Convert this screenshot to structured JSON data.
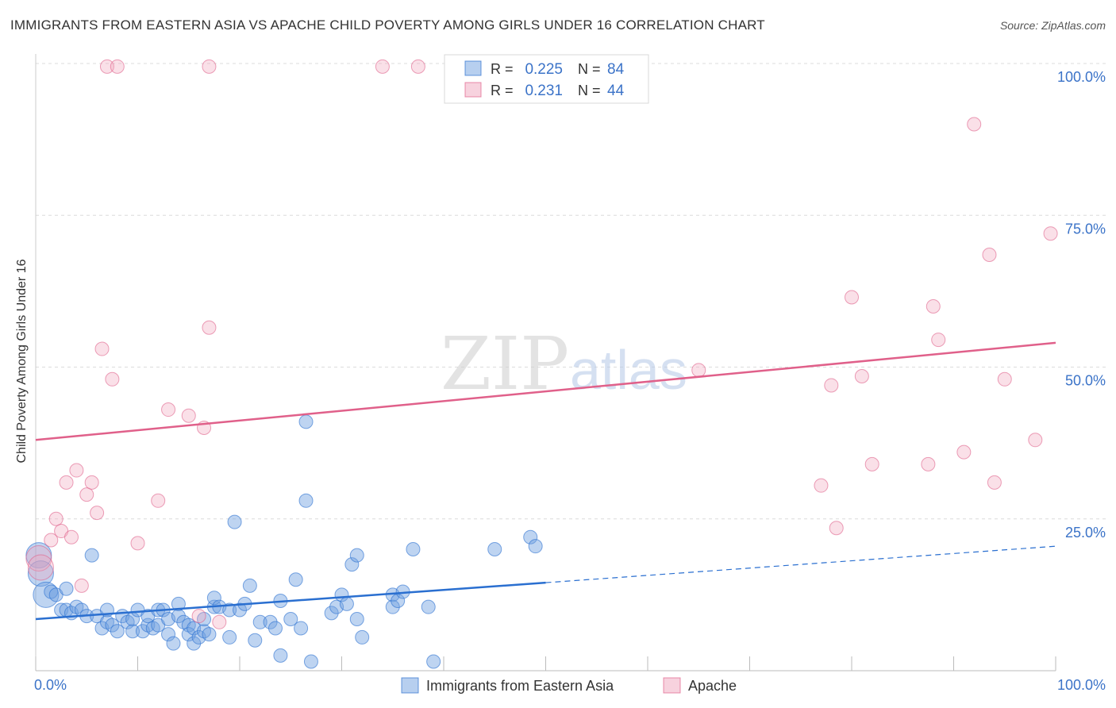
{
  "header": {
    "title": "IMMIGRANTS FROM EASTERN ASIA VS APACHE CHILD POVERTY AMONG GIRLS UNDER 16 CORRELATION CHART",
    "source": "Source: ZipAtlas.com"
  },
  "watermark": {
    "zip": "ZIP",
    "atlas": "atlas"
  },
  "stats": [
    {
      "r_label": "R =",
      "r_value": "0.225",
      "n_label": "N =",
      "n_value": "84"
    },
    {
      "r_label": "R =",
      "r_value": "0.231",
      "n_label": "N =",
      "n_value": "44"
    }
  ],
  "chart_data": {
    "type": "scatter",
    "title": "IMMIGRANTS FROM EASTERN ASIA VS APACHE CHILD POVERTY AMONG GIRLS UNDER 16 CORRELATION CHART",
    "xlabel": "",
    "ylabel": "Child Poverty Among Girls Under 16",
    "xlim": [
      0,
      100
    ],
    "ylim": [
      0,
      100
    ],
    "x_tick_labels": [
      "0.0%",
      "100.0%"
    ],
    "y_tick_labels": [
      "100.0%",
      "75.0%",
      "50.0%",
      "25.0%"
    ],
    "y_tick_values": [
      100,
      75,
      50,
      25
    ],
    "grid": "horizontal dashed",
    "legend_position": "bottom",
    "colors": {
      "eastern_asia": "#6f9fe0",
      "eastern_asia_line": "#2a6fd0",
      "apache": "#f0a5bd",
      "apache_line": "#e0608a",
      "value_text": "#3b73c8"
    },
    "series": [
      {
        "name": "Immigrants from Eastern Asia",
        "trend": {
          "x0": 0,
          "y0": 8.5,
          "x1": 50,
          "y1": 14.5,
          "dash_to_x": 100,
          "dash_to_y": 20.5
        },
        "points": [
          {
            "x": 0.3,
            "y": 19,
            "big": true
          },
          {
            "x": 0.5,
            "y": 16,
            "big": true
          },
          {
            "x": 1,
            "y": 12.5,
            "big": true
          },
          {
            "x": 1.5,
            "y": 13
          },
          {
            "x": 2,
            "y": 12.5
          },
          {
            "x": 2.5,
            "y": 10
          },
          {
            "x": 3,
            "y": 13.5
          },
          {
            "x": 3,
            "y": 10
          },
          {
            "x": 3.5,
            "y": 9.5
          },
          {
            "x": 4,
            "y": 10.5
          },
          {
            "x": 4.5,
            "y": 10
          },
          {
            "x": 5,
            "y": 9
          },
          {
            "x": 5.5,
            "y": 19
          },
          {
            "x": 6,
            "y": 9
          },
          {
            "x": 6.5,
            "y": 7
          },
          {
            "x": 7,
            "y": 8
          },
          {
            "x": 7,
            "y": 10
          },
          {
            "x": 7.5,
            "y": 7.5
          },
          {
            "x": 8,
            "y": 6.5
          },
          {
            "x": 8.5,
            "y": 9
          },
          {
            "x": 9,
            "y": 8
          },
          {
            "x": 9.5,
            "y": 6.5
          },
          {
            "x": 9.5,
            "y": 8.5
          },
          {
            "x": 10,
            "y": 10
          },
          {
            "x": 10.5,
            "y": 6.5
          },
          {
            "x": 11,
            "y": 7.5
          },
          {
            "x": 11,
            "y": 9
          },
          {
            "x": 11.5,
            "y": 7
          },
          {
            "x": 12,
            "y": 10
          },
          {
            "x": 12,
            "y": 7.5
          },
          {
            "x": 12.5,
            "y": 10
          },
          {
            "x": 13,
            "y": 8.5
          },
          {
            "x": 13,
            "y": 6
          },
          {
            "x": 13.5,
            "y": 4.5
          },
          {
            "x": 14,
            "y": 9
          },
          {
            "x": 14,
            "y": 11
          },
          {
            "x": 14.5,
            "y": 8
          },
          {
            "x": 15,
            "y": 7.5
          },
          {
            "x": 15,
            "y": 6
          },
          {
            "x": 15.5,
            "y": 4.5
          },
          {
            "x": 15.5,
            "y": 7
          },
          {
            "x": 16,
            "y": 5.5
          },
          {
            "x": 16.5,
            "y": 6.5
          },
          {
            "x": 16.5,
            "y": 8.5
          },
          {
            "x": 17,
            "y": 6
          },
          {
            "x": 17.5,
            "y": 10.5
          },
          {
            "x": 17.5,
            "y": 12
          },
          {
            "x": 18,
            "y": 10.5
          },
          {
            "x": 19,
            "y": 5.5
          },
          {
            "x": 19,
            "y": 10
          },
          {
            "x": 19.5,
            "y": 24.5
          },
          {
            "x": 20,
            "y": 10
          },
          {
            "x": 20.5,
            "y": 11
          },
          {
            "x": 21,
            "y": 14
          },
          {
            "x": 21.5,
            "y": 5
          },
          {
            "x": 22,
            "y": 8
          },
          {
            "x": 23,
            "y": 8
          },
          {
            "x": 23.5,
            "y": 7
          },
          {
            "x": 24,
            "y": 11.5
          },
          {
            "x": 24,
            "y": 2.5
          },
          {
            "x": 25,
            "y": 8.5
          },
          {
            "x": 25.5,
            "y": 15
          },
          {
            "x": 26,
            "y": 7
          },
          {
            "x": 26.5,
            "y": 41
          },
          {
            "x": 26.5,
            "y": 28
          },
          {
            "x": 27,
            "y": 1.5
          },
          {
            "x": 29,
            "y": 9.5
          },
          {
            "x": 29.5,
            "y": 10.5
          },
          {
            "x": 30,
            "y": 12.5
          },
          {
            "x": 30.5,
            "y": 11
          },
          {
            "x": 31,
            "y": 17.5
          },
          {
            "x": 31.5,
            "y": 8.5
          },
          {
            "x": 31.5,
            "y": 19
          },
          {
            "x": 32,
            "y": 5.5
          },
          {
            "x": 35,
            "y": 12.5
          },
          {
            "x": 35,
            "y": 10.5
          },
          {
            "x": 35.5,
            "y": 11.5
          },
          {
            "x": 36,
            "y": 13
          },
          {
            "x": 37,
            "y": 20
          },
          {
            "x": 38.5,
            "y": 10.5
          },
          {
            "x": 39,
            "y": 1.5
          },
          {
            "x": 45,
            "y": 20
          },
          {
            "x": 48.5,
            "y": 22
          },
          {
            "x": 49,
            "y": 20.5
          }
        ]
      },
      {
        "name": "Apache",
        "trend": {
          "x0": 0,
          "y0": 38,
          "x1": 100,
          "y1": 54
        },
        "points": [
          {
            "x": 0.3,
            "y": 18.5,
            "big": true
          },
          {
            "x": 0.5,
            "y": 17,
            "big": true
          },
          {
            "x": 1.5,
            "y": 21.5
          },
          {
            "x": 2,
            "y": 25
          },
          {
            "x": 2.5,
            "y": 23
          },
          {
            "x": 3,
            "y": 31
          },
          {
            "x": 3.5,
            "y": 22
          },
          {
            "x": 4,
            "y": 33
          },
          {
            "x": 4.5,
            "y": 14
          },
          {
            "x": 5,
            "y": 29
          },
          {
            "x": 5.5,
            "y": 31
          },
          {
            "x": 6,
            "y": 26
          },
          {
            "x": 6.5,
            "y": 53
          },
          {
            "x": 7,
            "y": 99.5
          },
          {
            "x": 7.5,
            "y": 48
          },
          {
            "x": 8,
            "y": 99.5
          },
          {
            "x": 10,
            "y": 21
          },
          {
            "x": 12,
            "y": 28
          },
          {
            "x": 13,
            "y": 43
          },
          {
            "x": 15,
            "y": 42
          },
          {
            "x": 16,
            "y": 9
          },
          {
            "x": 16.5,
            "y": 40
          },
          {
            "x": 17,
            "y": 99.5
          },
          {
            "x": 17,
            "y": 56.5
          },
          {
            "x": 18,
            "y": 8
          },
          {
            "x": 34,
            "y": 99.5
          },
          {
            "x": 37.5,
            "y": 99.5
          },
          {
            "x": 65,
            "y": 49.5
          },
          {
            "x": 77,
            "y": 30.5
          },
          {
            "x": 78,
            "y": 47
          },
          {
            "x": 78.5,
            "y": 23.5
          },
          {
            "x": 80,
            "y": 61.5
          },
          {
            "x": 81,
            "y": 48.5
          },
          {
            "x": 82,
            "y": 34
          },
          {
            "x": 87.5,
            "y": 34
          },
          {
            "x": 88,
            "y": 60
          },
          {
            "x": 88.5,
            "y": 54.5
          },
          {
            "x": 91,
            "y": 36
          },
          {
            "x": 92,
            "y": 90
          },
          {
            "x": 93.5,
            "y": 68.5
          },
          {
            "x": 94,
            "y": 31
          },
          {
            "x": 95,
            "y": 48
          },
          {
            "x": 98,
            "y": 38
          },
          {
            "x": 99.5,
            "y": 72
          }
        ]
      }
    ]
  }
}
